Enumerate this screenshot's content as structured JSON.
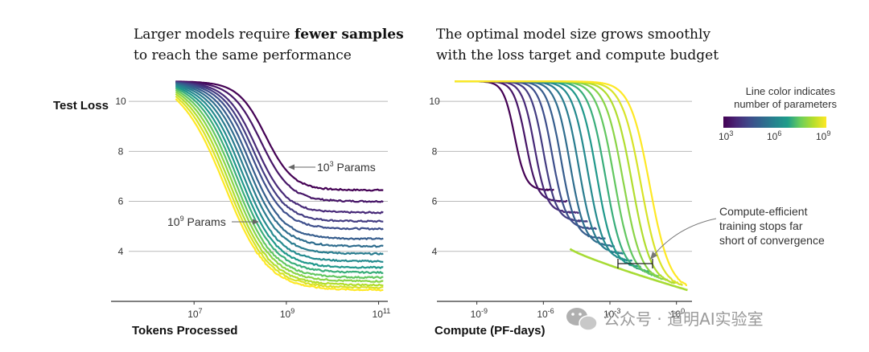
{
  "watermark": {
    "text": "公众号 · 道明AI实验室",
    "icon": "wechat-icon"
  },
  "legend": {
    "title_line1": "Line color indicates",
    "title_line2": "number of parameters",
    "colormap": "viridis",
    "colors": [
      "#440154",
      "#482777",
      "#3f4a8a",
      "#31678e",
      "#26838f",
      "#1f9d8a",
      "#6cce5a",
      "#b6de2b",
      "#fee825"
    ],
    "ticks": [
      {
        "base": "10",
        "exp": "3"
      },
      {
        "base": "10",
        "exp": "6"
      },
      {
        "base": "10",
        "exp": "9"
      }
    ]
  },
  "chart_data": [
    {
      "type": "line",
      "title_parts": [
        {
          "text": "Larger models require ",
          "bold": false
        },
        {
          "text": "fewer samples",
          "bold": true
        }
      ],
      "title_line2": "to reach the same performance",
      "ylabel": "Test Loss",
      "xlabel": "Tokens Processed",
      "xscale": "log",
      "xlim_log10": [
        5.2,
        11.2
      ],
      "ylim": [
        2.0,
        11.0
      ],
      "yticks": [
        4,
        6,
        8,
        10
      ],
      "xticks": [
        {
          "base": "10",
          "exp": "7",
          "log": 7
        },
        {
          "base": "10",
          "exp": "9",
          "log": 9
        },
        {
          "base": "10",
          "exp": "11",
          "log": 11
        }
      ],
      "annotations": [
        {
          "base": "10",
          "exp": "3",
          "suffix": " Params",
          "target": "smallest model curve"
        },
        {
          "base": "10",
          "exp": "9",
          "suffix": " Params",
          "target": "largest model curve"
        }
      ],
      "series": [
        {
          "log_params": 3.0,
          "start_loss": 10.8,
          "final_loss": 6.45,
          "drop_log10_tokens": 8.55,
          "drop_width": 0.3
        },
        {
          "log_params": 3.4,
          "start_loss": 10.8,
          "final_loss": 6.0,
          "drop_log10_tokens": 8.45,
          "drop_width": 0.32
        },
        {
          "log_params": 3.8,
          "start_loss": 10.8,
          "final_loss": 5.55,
          "drop_log10_tokens": 8.35,
          "drop_width": 0.33
        },
        {
          "log_params": 4.2,
          "start_loss": 10.8,
          "final_loss": 5.2,
          "drop_log10_tokens": 8.3,
          "drop_width": 0.34
        },
        {
          "log_params": 4.6,
          "start_loss": 10.8,
          "final_loss": 4.9,
          "drop_log10_tokens": 8.25,
          "drop_width": 0.35
        },
        {
          "log_params": 5.0,
          "start_loss": 10.8,
          "final_loss": 4.5,
          "drop_log10_tokens": 8.2,
          "drop_width": 0.36
        },
        {
          "log_params": 5.4,
          "start_loss": 10.8,
          "final_loss": 4.2,
          "drop_log10_tokens": 8.15,
          "drop_width": 0.37
        },
        {
          "log_params": 5.8,
          "start_loss": 10.8,
          "final_loss": 3.9,
          "drop_log10_tokens": 8.1,
          "drop_width": 0.38
        },
        {
          "log_params": 6.2,
          "start_loss": 10.8,
          "final_loss": 3.6,
          "drop_log10_tokens": 8.05,
          "drop_width": 0.39
        },
        {
          "log_params": 6.6,
          "start_loss": 10.8,
          "final_loss": 3.35,
          "drop_log10_tokens": 8.0,
          "drop_width": 0.4
        },
        {
          "log_params": 7.0,
          "start_loss": 10.8,
          "final_loss": 3.15,
          "drop_log10_tokens": 7.95,
          "drop_width": 0.41
        },
        {
          "log_params": 7.4,
          "start_loss": 10.8,
          "final_loss": 2.95,
          "drop_log10_tokens": 7.9,
          "drop_width": 0.42
        },
        {
          "log_params": 7.8,
          "start_loss": 10.8,
          "final_loss": 2.8,
          "drop_log10_tokens": 7.85,
          "drop_width": 0.43
        },
        {
          "log_params": 8.2,
          "start_loss": 10.8,
          "final_loss": 2.65,
          "drop_log10_tokens": 7.8,
          "drop_width": 0.44
        },
        {
          "log_params": 8.6,
          "start_loss": 10.8,
          "final_loss": 2.55,
          "drop_log10_tokens": 7.75,
          "drop_width": 0.45
        },
        {
          "log_params": 9.0,
          "start_loss": 10.8,
          "final_loss": 2.45,
          "drop_log10_tokens": 7.7,
          "drop_width": 0.46
        }
      ]
    },
    {
      "type": "line",
      "title_parts": [
        {
          "text": "The optimal model size grows smoothly",
          "bold": false
        }
      ],
      "title_line2": "with the loss target and compute budget",
      "ylabel": "",
      "xlabel": "Compute (PF-days)",
      "xscale": "log",
      "xlim_log10": [
        -10.8,
        0.7
      ],
      "ylim": [
        2.0,
        11.0
      ],
      "yticks": [
        4,
        6,
        8,
        10
      ],
      "xticks": [
        {
          "base": "10",
          "exp": "-9",
          "log": -9
        },
        {
          "base": "10",
          "exp": "-6",
          "log": -6
        },
        {
          "base": "10",
          "exp": "-3",
          "log": -3
        },
        {
          "base": "10",
          "exp": "0",
          "log": 0
        }
      ],
      "annotations": [
        {
          "line1": "Compute-efficient",
          "line2": "training stops far",
          "line3": "short of convergence"
        }
      ],
      "frontier": {
        "from_log10_compute": -4.8,
        "to_log10_compute": 0.5,
        "loss_from": 4.1,
        "loss_to": 2.45
      },
      "series": [
        {
          "log_params": 3.0,
          "final_loss": 6.45,
          "drop_log10_compute": -7.3,
          "end_log10_compute": -5.5
        },
        {
          "log_params": 3.4,
          "final_loss": 6.0,
          "drop_log10_compute": -6.8,
          "end_log10_compute": -4.9
        },
        {
          "log_params": 3.8,
          "final_loss": 5.55,
          "drop_log10_compute": -6.4,
          "end_log10_compute": -4.4
        },
        {
          "log_params": 4.2,
          "final_loss": 5.2,
          "drop_log10_compute": -6.0,
          "end_log10_compute": -4.0
        },
        {
          "log_params": 4.6,
          "final_loss": 4.9,
          "drop_log10_compute": -5.6,
          "end_log10_compute": -3.6
        },
        {
          "log_params": 5.0,
          "final_loss": 4.5,
          "drop_log10_compute": -5.2,
          "end_log10_compute": -3.2
        },
        {
          "log_params": 5.4,
          "final_loss": 4.2,
          "drop_log10_compute": -4.8,
          "end_log10_compute": -2.8
        },
        {
          "log_params": 5.8,
          "final_loss": 3.9,
          "drop_log10_compute": -4.4,
          "end_log10_compute": -2.4
        },
        {
          "log_params": 6.2,
          "final_loss": 3.6,
          "drop_log10_compute": -4.0,
          "end_log10_compute": -2.0
        },
        {
          "log_params": 6.6,
          "final_loss": 3.35,
          "drop_log10_compute": -3.6,
          "end_log10_compute": -1.6
        },
        {
          "log_params": 7.0,
          "final_loss": 3.15,
          "drop_log10_compute": -3.2,
          "end_log10_compute": -1.2
        },
        {
          "log_params": 7.4,
          "final_loss": 2.95,
          "drop_log10_compute": -2.8,
          "end_log10_compute": -0.8
        },
        {
          "log_params": 7.8,
          "final_loss": 2.8,
          "drop_log10_compute": -2.4,
          "end_log10_compute": -0.4
        },
        {
          "log_params": 8.2,
          "final_loss": 2.65,
          "drop_log10_compute": -2.0,
          "end_log10_compute": 0.0
        },
        {
          "log_params": 8.6,
          "final_loss": 2.55,
          "drop_log10_compute": -1.6,
          "end_log10_compute": 0.3
        },
        {
          "log_params": 9.0,
          "final_loss": 2.45,
          "drop_log10_compute": -1.2,
          "end_log10_compute": 0.5
        }
      ]
    }
  ]
}
